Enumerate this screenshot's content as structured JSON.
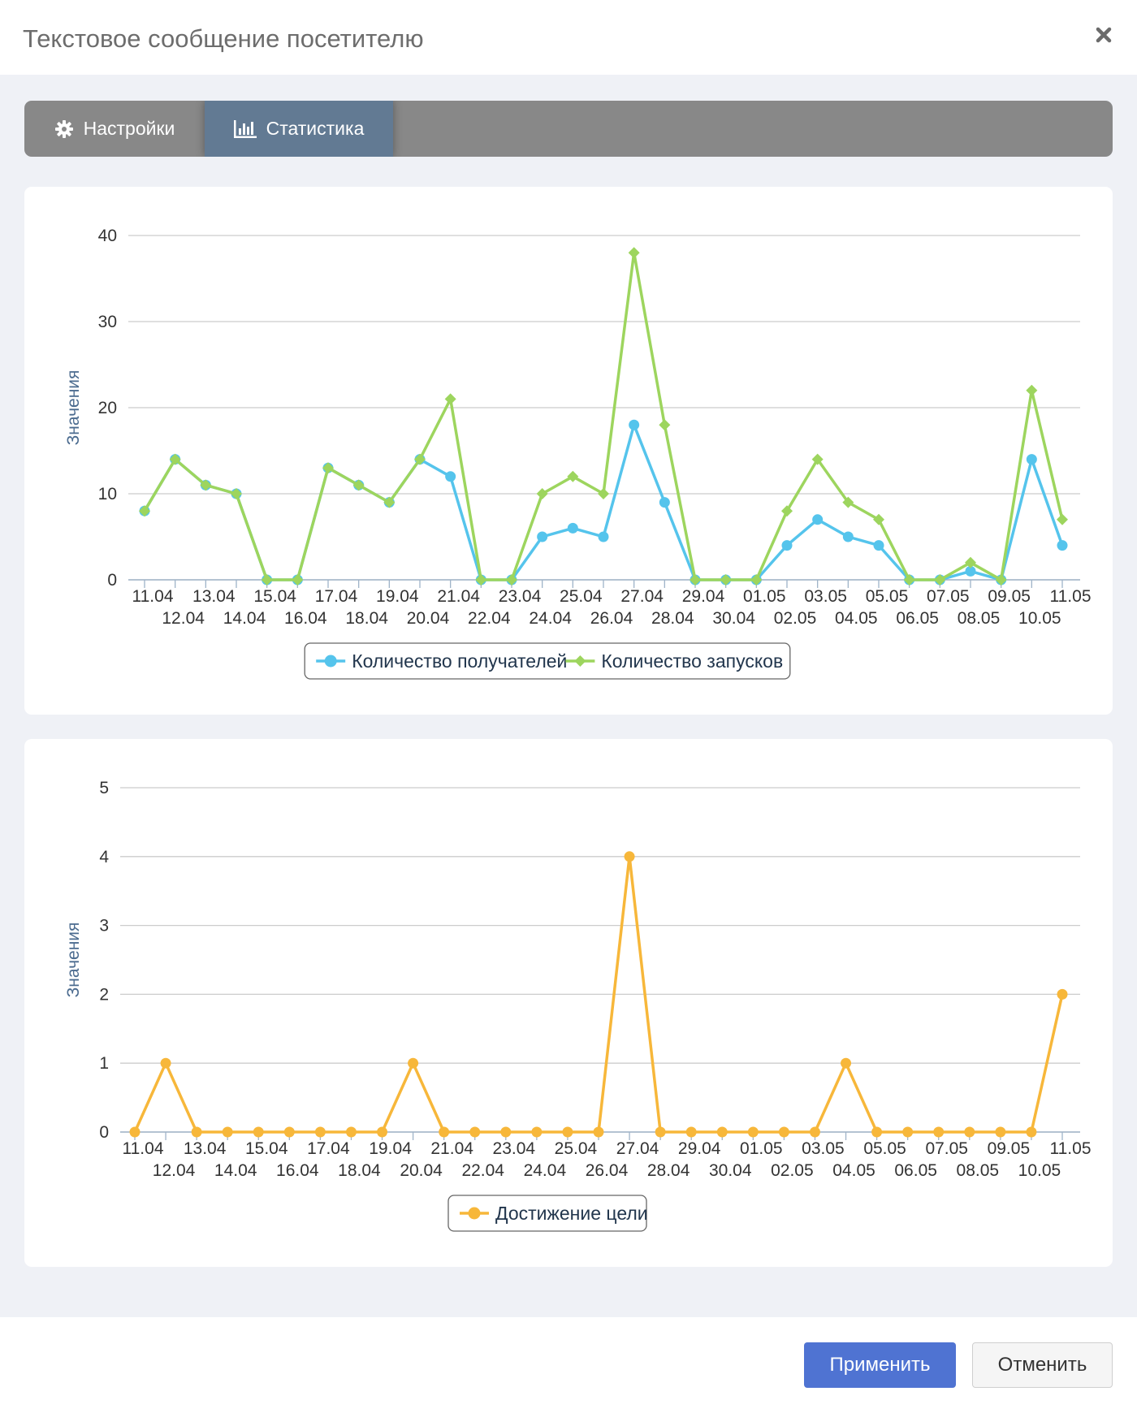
{
  "header": {
    "title": "Текстовое сообщение посетителю",
    "close_icon": "close-icon"
  },
  "tabs": [
    {
      "label": "Настройки",
      "icon": "gear-icon",
      "active": false
    },
    {
      "label": "Статистика",
      "icon": "bar-chart-icon",
      "active": true
    }
  ],
  "footer": {
    "apply_label": "Применить",
    "cancel_label": "Отменить"
  },
  "colors": {
    "recipients": "#55c4ec",
    "launches": "#9dd55e",
    "goal": "#f7b73a",
    "active_tab": "#627a93",
    "apply_button": "#4f73d2"
  },
  "chart_data": [
    {
      "type": "line",
      "ylabel": "Значения",
      "ylim": [
        0,
        40
      ],
      "yticks": [
        0,
        10,
        20,
        30,
        40
      ],
      "grid": true,
      "legend_position": "bottom",
      "categories": [
        "11.04",
        "12.04",
        "13.04",
        "14.04",
        "15.04",
        "16.04",
        "17.04",
        "18.04",
        "19.04",
        "20.04",
        "21.04",
        "22.04",
        "23.04",
        "24.04",
        "25.04",
        "26.04",
        "27.04",
        "28.04",
        "29.04",
        "30.04",
        "01.05",
        "02.05",
        "03.05",
        "04.05",
        "05.05",
        "06.05",
        "07.05",
        "08.05",
        "09.05",
        "10.05",
        "11.05"
      ],
      "series": [
        {
          "name": "Количество получателей",
          "color": "#55c4ec",
          "marker": "circle",
          "values": [
            8,
            14,
            11,
            10,
            0,
            0,
            13,
            11,
            9,
            14,
            12,
            0,
            0,
            5,
            6,
            5,
            18,
            9,
            0,
            0,
            0,
            4,
            7,
            5,
            4,
            0,
            0,
            1,
            0,
            14,
            4
          ]
        },
        {
          "name": "Количество запусков",
          "color": "#9dd55e",
          "marker": "diamond",
          "values": [
            8,
            14,
            11,
            10,
            0,
            0,
            13,
            11,
            9,
            14,
            21,
            0,
            0,
            10,
            12,
            10,
            38,
            18,
            0,
            0,
            0,
            8,
            14,
            9,
            7,
            0,
            0,
            2,
            0,
            22,
            7
          ]
        }
      ]
    },
    {
      "type": "line",
      "ylabel": "Значения",
      "ylim": [
        0,
        5
      ],
      "yticks": [
        0,
        1,
        2,
        3,
        4,
        5
      ],
      "grid": true,
      "legend_position": "bottom",
      "categories": [
        "11.04",
        "12.04",
        "13.04",
        "14.04",
        "15.04",
        "16.04",
        "17.04",
        "18.04",
        "19.04",
        "20.04",
        "21.04",
        "22.04",
        "23.04",
        "24.04",
        "25.04",
        "26.04",
        "27.04",
        "28.04",
        "29.04",
        "30.04",
        "01.05",
        "02.05",
        "03.05",
        "04.05",
        "05.05",
        "06.05",
        "07.05",
        "08.05",
        "09.05",
        "10.05",
        "11.05"
      ],
      "series": [
        {
          "name": "Достижение цели",
          "color": "#f7b73a",
          "marker": "circle",
          "values": [
            0,
            1,
            0,
            0,
            0,
            0,
            0,
            0,
            0,
            1,
            0,
            0,
            0,
            0,
            0,
            0,
            4,
            0,
            0,
            0,
            0,
            0,
            0,
            1,
            0,
            0,
            0,
            0,
            0,
            0,
            2
          ]
        }
      ]
    }
  ]
}
